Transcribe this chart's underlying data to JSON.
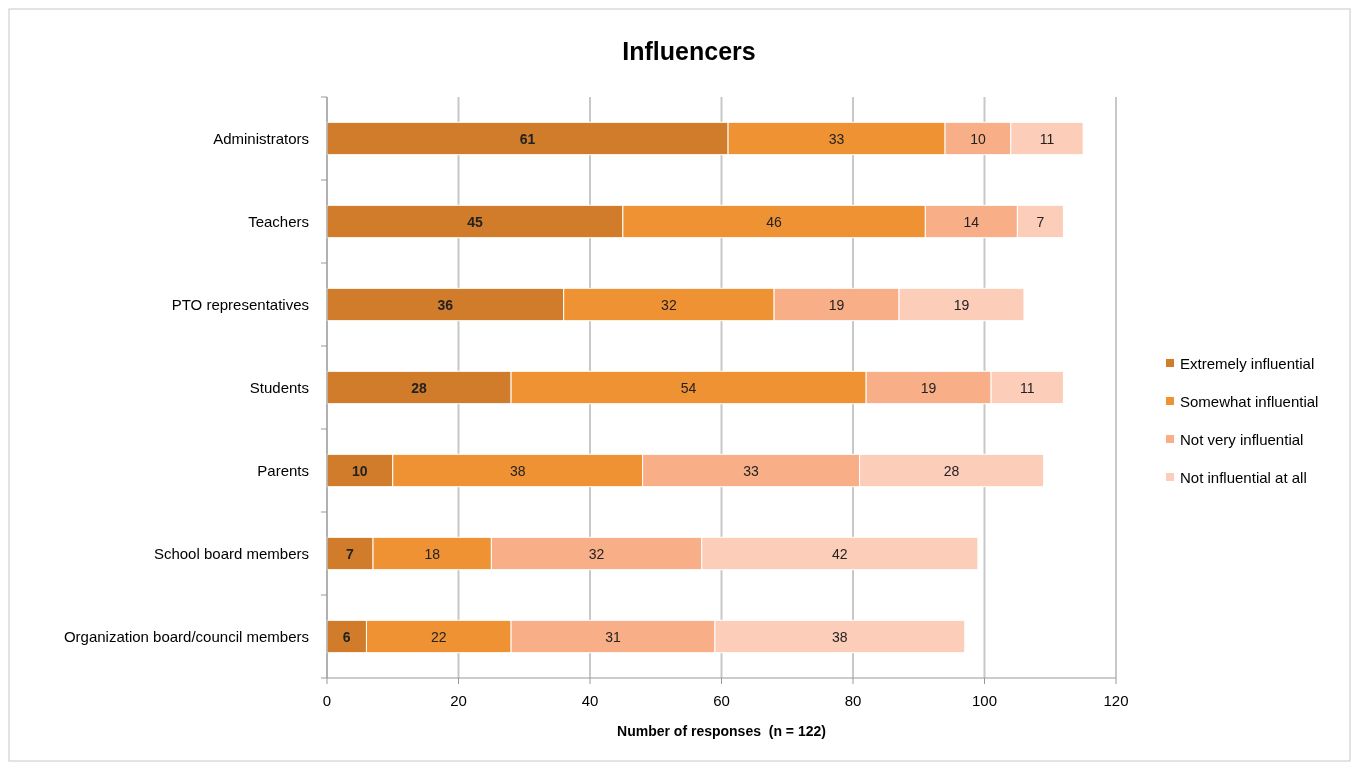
{
  "chart_data": {
    "type": "bar",
    "orientation": "horizontal",
    "stacked": true,
    "title": "Influencers",
    "xlabel": "Number of responses  (n = 122)",
    "categories": [
      "Administrators",
      "Teachers",
      "PTO representatives",
      "Students",
      "Parents",
      "School board members",
      "Organization board/council members"
    ],
    "series": [
      {
        "name": "Extremely influential",
        "color": "#d07c2a",
        "values": [
          61,
          45,
          36,
          28,
          10,
          7,
          6
        ]
      },
      {
        "name": "Somewhat influential",
        "color": "#ee9234",
        "values": [
          33,
          46,
          32,
          54,
          38,
          18,
          22
        ]
      },
      {
        "name": "Not very influential",
        "color": "#f8ae86",
        "values": [
          10,
          14,
          19,
          19,
          33,
          32,
          31
        ]
      },
      {
        "name": "Not influential at all",
        "color": "#fccdb9",
        "values": [
          11,
          7,
          19,
          11,
          28,
          42,
          38
        ]
      }
    ],
    "xlim": [
      0,
      120
    ],
    "xticks": [
      0,
      20,
      40,
      60,
      80,
      100,
      120
    ],
    "grid": "x",
    "legend": "right",
    "data_labels": true
  }
}
